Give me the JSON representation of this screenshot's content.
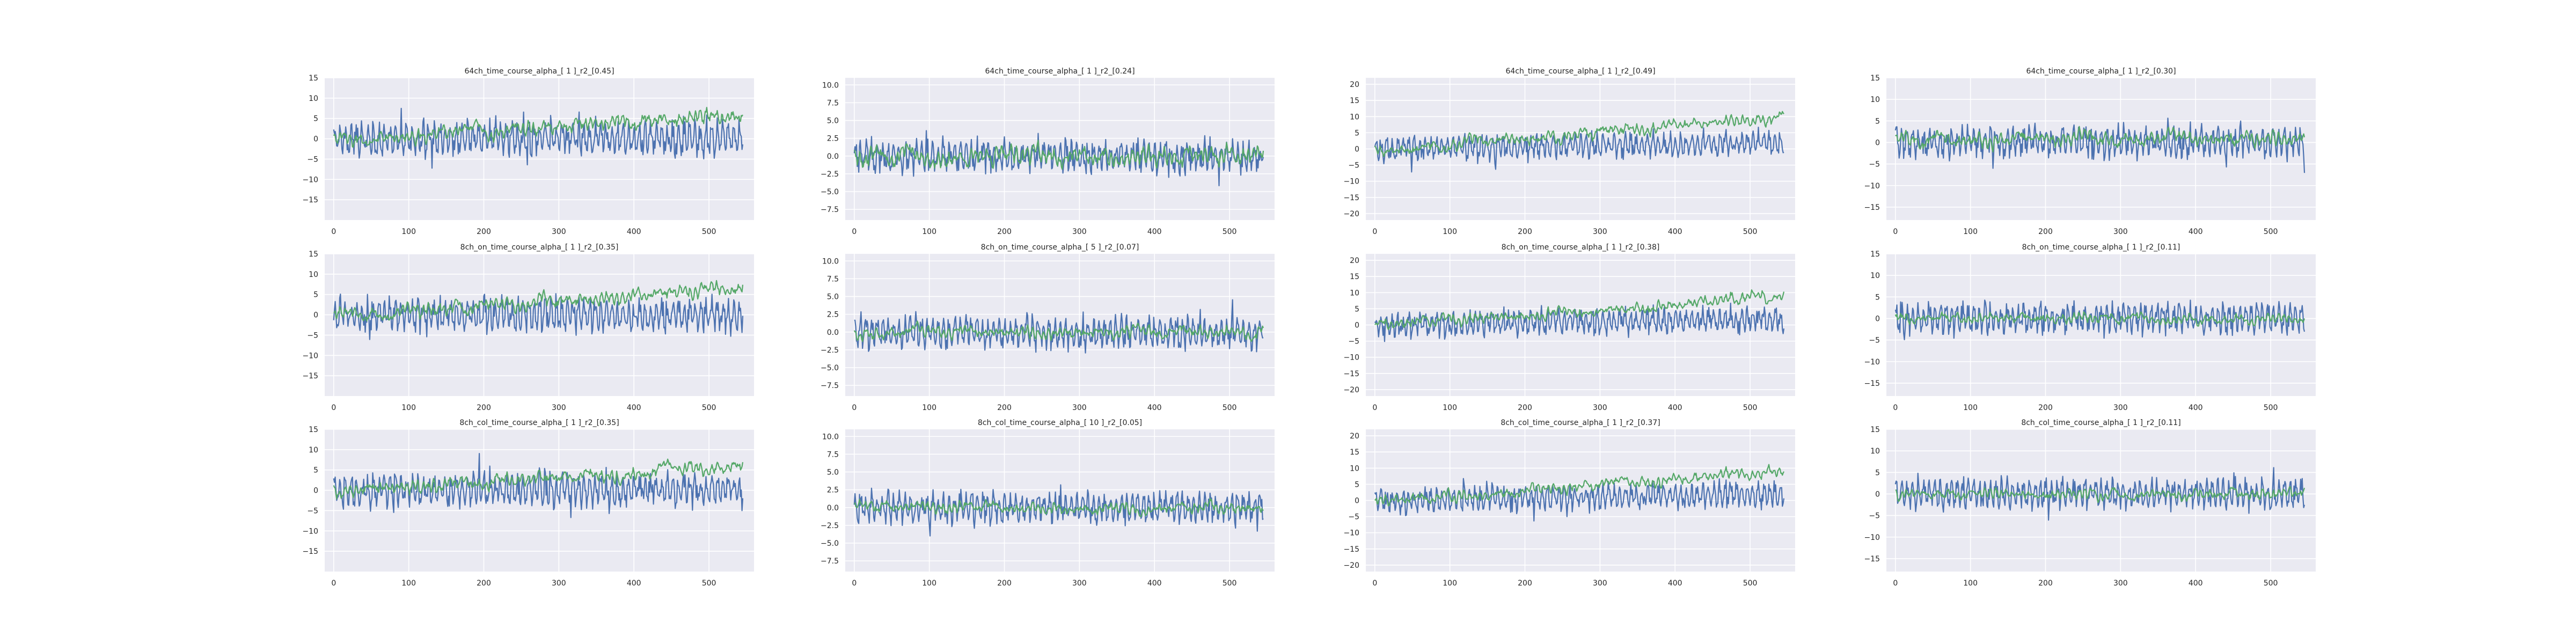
{
  "figure": {
    "background": "#ffffff",
    "axes_background": "#eaeaf2",
    "grid_color": "#ffffff",
    "series_colors": [
      "#4c72b0",
      "#55a868"
    ]
  },
  "chart_data": [
    {
      "type": "line",
      "title": "64ch_time_course_alpha_[ 1 ]_r2_[0.45]",
      "seed": 11,
      "xlim": [
        -12,
        560
      ],
      "xticks": [
        0,
        100,
        200,
        300,
        400,
        500
      ],
      "ylim": [
        -20,
        15
      ],
      "yticks": [
        -15,
        -10,
        -5,
        0,
        5,
        10,
        15
      ],
      "grid": true,
      "n_points": 546,
      "series": [
        {
          "color": "#4c72b0",
          "amplitude": 7.5,
          "trend_start": 0,
          "trend_end": 0,
          "smooth": false
        },
        {
          "color": "#55a868",
          "amplitude": 2.0,
          "trend_start": 0,
          "trend_end": 6,
          "smooth": true
        }
      ]
    },
    {
      "type": "line",
      "title": "64ch_time_course_alpha_[ 1 ]_r2_[0.24]",
      "seed": 23,
      "xlim": [
        -12,
        560
      ],
      "xticks": [
        0,
        100,
        200,
        300,
        400,
        500
      ],
      "ylim": [
        -9,
        11
      ],
      "yticks": [
        -7.5,
        -5.0,
        -2.5,
        0.0,
        2.5,
        5.0,
        7.5,
        10.0
      ],
      "grid": true,
      "n_points": 546,
      "series": [
        {
          "color": "#4c72b0",
          "amplitude": 4.0,
          "trend_start": 0,
          "trend_end": 0,
          "smooth": false
        },
        {
          "color": "#55a868",
          "amplitude": 1.5,
          "trend_start": 0,
          "trend_end": 0,
          "smooth": true
        }
      ]
    },
    {
      "type": "line",
      "title": "64ch_time_course_alpha_[ 1 ]_r2_[0.49]",
      "seed": 37,
      "xlim": [
        -12,
        560
      ],
      "xticks": [
        0,
        100,
        200,
        300,
        400,
        500
      ],
      "ylim": [
        -22,
        22
      ],
      "yticks": [
        -20,
        -15,
        -10,
        -5,
        0,
        5,
        10,
        15,
        20
      ],
      "grid": true,
      "n_points": 546,
      "series": [
        {
          "color": "#4c72b0",
          "amplitude": 7.0,
          "trend_start": 0,
          "trend_end": 2,
          "smooth": false
        },
        {
          "color": "#55a868",
          "amplitude": 2.0,
          "trend_start": 0,
          "trend_end": 10,
          "smooth": true
        }
      ]
    },
    {
      "type": "line",
      "title": "64ch_time_course_alpha_[ 1 ]_r2_[0.30]",
      "seed": 41,
      "xlim": [
        -12,
        560
      ],
      "xticks": [
        0,
        100,
        200,
        300,
        400,
        500
      ],
      "ylim": [
        -18,
        15
      ],
      "yticks": [
        -15,
        -10,
        -5,
        0,
        5,
        10,
        15
      ],
      "grid": true,
      "n_points": 546,
      "series": [
        {
          "color": "#4c72b0",
          "amplitude": 6.5,
          "trend_start": 0,
          "trend_end": 0,
          "smooth": false
        },
        {
          "color": "#55a868",
          "amplitude": 1.8,
          "trend_start": 1,
          "trend_end": 1,
          "smooth": true
        }
      ]
    },
    {
      "type": "line",
      "title": "8ch_on_time_course_alpha_[ 1 ]_r2_[0.35]",
      "seed": 53,
      "xlim": [
        -12,
        560
      ],
      "xticks": [
        0,
        100,
        200,
        300,
        400,
        500
      ],
      "ylim": [
        -20,
        15
      ],
      "yticks": [
        -15,
        -10,
        -5,
        0,
        5,
        10,
        15
      ],
      "grid": true,
      "n_points": 546,
      "series": [
        {
          "color": "#4c72b0",
          "amplitude": 7.5,
          "trend_start": 0,
          "trend_end": 0,
          "smooth": false
        },
        {
          "color": "#55a868",
          "amplitude": 1.8,
          "trend_start": 0,
          "trend_end": 7,
          "smooth": true
        }
      ]
    },
    {
      "type": "line",
      "title": "8ch_on_time_course_alpha_[ 5 ]_r2_[0.07]",
      "seed": 67,
      "xlim": [
        -12,
        560
      ],
      "xticks": [
        0,
        100,
        200,
        300,
        400,
        500
      ],
      "ylim": [
        -9,
        11
      ],
      "yticks": [
        -7.5,
        -5.0,
        -2.5,
        0.0,
        2.5,
        5.0,
        7.5,
        10.0
      ],
      "grid": true,
      "n_points": 546,
      "series": [
        {
          "color": "#4c72b0",
          "amplitude": 4.0,
          "trend_start": 0,
          "trend_end": 0,
          "smooth": false
        },
        {
          "color": "#55a868",
          "amplitude": 0.9,
          "trend_start": 0,
          "trend_end": 0,
          "smooth": true
        }
      ]
    },
    {
      "type": "line",
      "title": "8ch_on_time_course_alpha_[ 1 ]_r2_[0.38]",
      "seed": 79,
      "xlim": [
        -12,
        560
      ],
      "xticks": [
        0,
        100,
        200,
        300,
        400,
        500
      ],
      "ylim": [
        -22,
        22
      ],
      "yticks": [
        -20,
        -15,
        -10,
        -5,
        0,
        5,
        10,
        15,
        20
      ],
      "grid": true,
      "n_points": 546,
      "series": [
        {
          "color": "#4c72b0",
          "amplitude": 7.0,
          "trend_start": 0,
          "trend_end": 2,
          "smooth": false
        },
        {
          "color": "#55a868",
          "amplitude": 1.8,
          "trend_start": 0,
          "trend_end": 9,
          "smooth": true
        }
      ]
    },
    {
      "type": "line",
      "title": "8ch_on_time_course_alpha_[ 1 ]_r2_[0.11]",
      "seed": 83,
      "xlim": [
        -12,
        560
      ],
      "xticks": [
        0,
        100,
        200,
        300,
        400,
        500
      ],
      "ylim": [
        -18,
        15
      ],
      "yticks": [
        -15,
        -10,
        -5,
        0,
        5,
        10,
        15
      ],
      "grid": true,
      "n_points": 546,
      "series": [
        {
          "color": "#4c72b0",
          "amplitude": 6.5,
          "trend_start": 0,
          "trend_end": 0,
          "smooth": false
        },
        {
          "color": "#55a868",
          "amplitude": 1.2,
          "trend_start": 0,
          "trend_end": 0,
          "smooth": true
        }
      ]
    },
    {
      "type": "line",
      "title": "8ch_col_time_course_alpha_[ 1 ]_r2_[0.35]",
      "seed": 97,
      "xlim": [
        -12,
        560
      ],
      "xticks": [
        0,
        100,
        200,
        300,
        400,
        500
      ],
      "ylim": [
        -20,
        15
      ],
      "yticks": [
        -15,
        -10,
        -5,
        0,
        5,
        10,
        15
      ],
      "grid": true,
      "n_points": 546,
      "series": [
        {
          "color": "#4c72b0",
          "amplitude": 7.5,
          "trend_start": 0,
          "trend_end": 0,
          "smooth": false
        },
        {
          "color": "#55a868",
          "amplitude": 1.8,
          "trend_start": 0,
          "trend_end": 6,
          "smooth": true
        }
      ]
    },
    {
      "type": "line",
      "title": "8ch_col_time_course_alpha_[ 10 ]_r2_[0.05]",
      "seed": 101,
      "xlim": [
        -12,
        560
      ],
      "xticks": [
        0,
        100,
        200,
        300,
        400,
        500
      ],
      "ylim": [
        -9,
        11
      ],
      "yticks": [
        -7.5,
        -5.0,
        -2.5,
        0.0,
        2.5,
        5.0,
        7.5,
        10.0
      ],
      "grid": true,
      "n_points": 546,
      "series": [
        {
          "color": "#4c72b0",
          "amplitude": 4.0,
          "trend_start": 0,
          "trend_end": 0,
          "smooth": false
        },
        {
          "color": "#55a868",
          "amplitude": 0.8,
          "trend_start": 0,
          "trend_end": 0,
          "smooth": true
        }
      ]
    },
    {
      "type": "line",
      "title": "8ch_col_time_course_alpha_[ 1 ]_r2_[0.37]",
      "seed": 113,
      "xlim": [
        -12,
        560
      ],
      "xticks": [
        0,
        100,
        200,
        300,
        400,
        500
      ],
      "ylim": [
        -22,
        22
      ],
      "yticks": [
        -20,
        -15,
        -10,
        -5,
        0,
        5,
        10,
        15,
        20
      ],
      "grid": true,
      "n_points": 546,
      "series": [
        {
          "color": "#4c72b0",
          "amplitude": 7.0,
          "trend_start": 0,
          "trend_end": 2,
          "smooth": false
        },
        {
          "color": "#55a868",
          "amplitude": 1.8,
          "trend_start": 0,
          "trend_end": 9,
          "smooth": true
        }
      ]
    },
    {
      "type": "line",
      "title": "8ch_col_time_course_alpha_[ 1 ]_r2_[0.11]",
      "seed": 127,
      "xlim": [
        -12,
        560
      ],
      "xticks": [
        0,
        100,
        200,
        300,
        400,
        500
      ],
      "ylim": [
        -18,
        15
      ],
      "yticks": [
        -15,
        -10,
        -5,
        0,
        5,
        10,
        15
      ],
      "grid": true,
      "n_points": 546,
      "series": [
        {
          "color": "#4c72b0",
          "amplitude": 6.5,
          "trend_start": 0,
          "trend_end": 0,
          "smooth": false
        },
        {
          "color": "#55a868",
          "amplitude": 1.2,
          "trend_start": 0,
          "trend_end": 0,
          "smooth": true
        }
      ]
    }
  ]
}
